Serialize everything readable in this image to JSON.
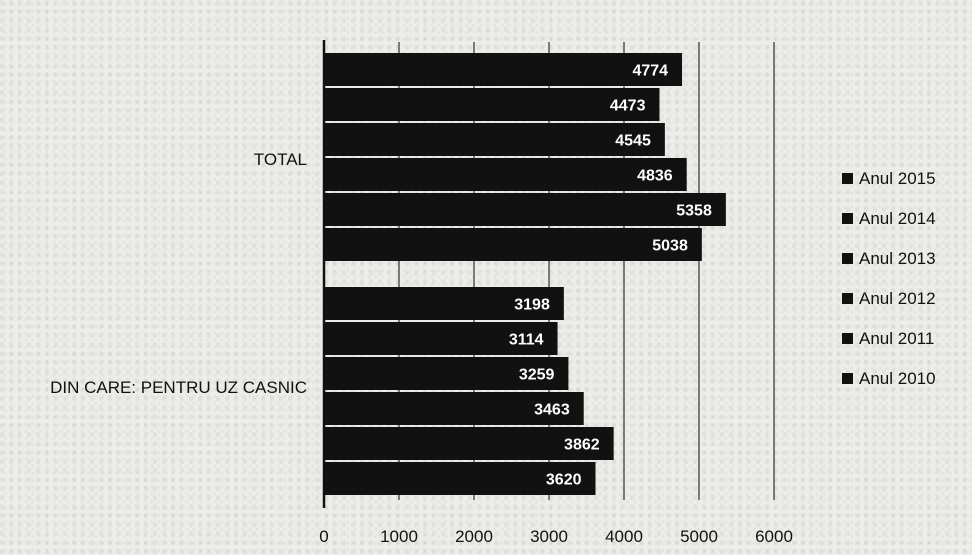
{
  "chart_data": {
    "type": "bar",
    "orientation": "horizontal",
    "categories": [
      "TOTAL",
      "DIN CARE: PENTRU UZ CASNIC"
    ],
    "series": [
      {
        "name": "Anul 2015",
        "values": [
          4774,
          3198
        ]
      },
      {
        "name": "Anul 2014",
        "values": [
          4473,
          3114
        ]
      },
      {
        "name": "Anul 2013",
        "values": [
          4545,
          3259
        ]
      },
      {
        "name": "Anul 2012",
        "values": [
          4836,
          3463
        ]
      },
      {
        "name": "Anul 2011",
        "values": [
          5358,
          3862
        ]
      },
      {
        "name": "Anul 2010",
        "values": [
          5038,
          3620
        ]
      }
    ],
    "xlim": [
      0,
      6000
    ],
    "xticks": [
      "0",
      "1000",
      "2000",
      "3000",
      "4000",
      "5000",
      "6000"
    ],
    "grid": "vertical",
    "legend_position": "right",
    "bar_color": "#111111",
    "label_color": "#ffffff"
  }
}
